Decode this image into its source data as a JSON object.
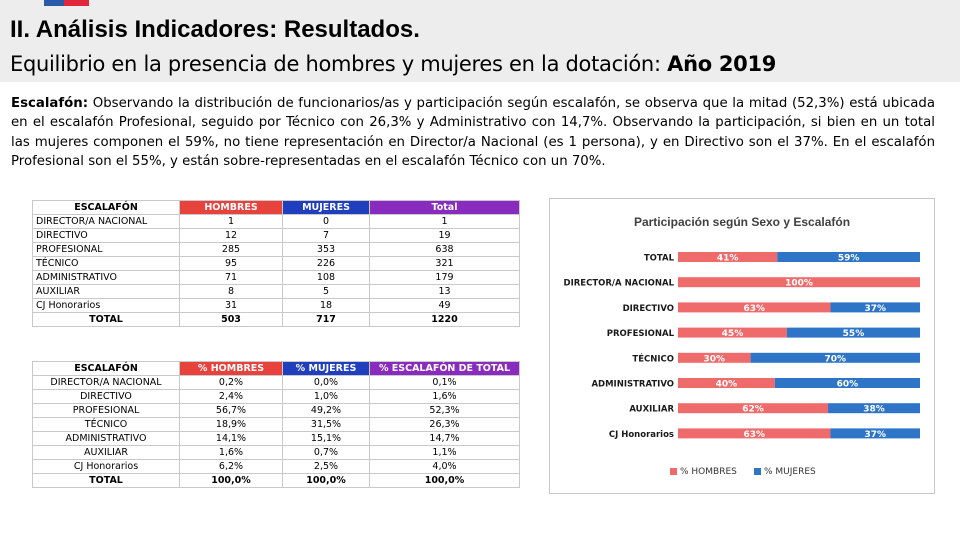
{
  "header": {
    "title": "II. Análisis Indicadores: Resultados.",
    "subtitle": "Equilibrio en la presencia de hombres y mujeres en la dotación:",
    "subtitle_year": "Año 2019"
  },
  "paragraph": {
    "lead": "Escalafón:",
    "text": " Observando la distribución de funcionarios/as y participación según escalafón, se observa que la mitad (52,3%) está ubicada en el escalafón Profesional, seguido por Técnico con 26,3% y Administrativo con 14,7%. Observando la participación, si bien en un total las mujeres componen el 59%, no tiene representación en Director/a Nacional (es 1 persona), y en Directivo son el 37%. En el escalafón Profesional son el 55%, y están sobre-representadas en el escalafón Técnico con un 70%."
  },
  "table_counts": {
    "headers": [
      "ESCALAFÓN",
      "HOMBRES",
      "MUJERES",
      "Total"
    ],
    "rows": [
      [
        "DIRECTOR/A NACIONAL",
        "1",
        "0",
        "1"
      ],
      [
        "DIRECTIVO",
        "12",
        "7",
        "19"
      ],
      [
        "PROFESIONAL",
        "285",
        "353",
        "638"
      ],
      [
        "TÉCNICO",
        "95",
        "226",
        "321"
      ],
      [
        "ADMINISTRATIVO",
        "71",
        "108",
        "179"
      ],
      [
        "AUXILIAR",
        "8",
        "5",
        "13"
      ],
      [
        "CJ Honorarios",
        "31",
        "18",
        "49"
      ]
    ],
    "total": [
      "TOTAL",
      "503",
      "717",
      "1220"
    ]
  },
  "table_pct": {
    "headers": [
      "ESCALAFÓN",
      "%  HOMBRES",
      "%  MUJERES",
      "% ESCALAFÓN DE TOTAL"
    ],
    "rows": [
      [
        "DIRECTOR/A NACIONAL",
        "0,2%",
        "0,0%",
        "0,1%"
      ],
      [
        "DIRECTIVO",
        "2,4%",
        "1,0%",
        "1,6%"
      ],
      [
        "PROFESIONAL",
        "56,7%",
        "49,2%",
        "52,3%"
      ],
      [
        "TÉCNICO",
        "18,9%",
        "31,5%",
        "26,3%"
      ],
      [
        "ADMINISTRATIVO",
        "14,1%",
        "15,1%",
        "14,7%"
      ],
      [
        "AUXILIAR",
        "1,6%",
        "0,7%",
        "1,1%"
      ],
      [
        "CJ Honorarios",
        "6,2%",
        "2,5%",
        "4,0%"
      ]
    ],
    "total": [
      "TOTAL",
      "100,0%",
      "100,0%",
      "100,0%"
    ]
  },
  "colors": {
    "hombres": "#ef6b6b",
    "mujeres": "#2e75c8",
    "header_red": "#e8423d",
    "header_blue": "#1f3fbe",
    "header_purple": "#8a2bbf"
  },
  "chart_data": {
    "type": "bar",
    "orientation": "horizontal",
    "stacked": "100%",
    "title": "Participación según Sexo y Escalafón",
    "categories": [
      "TOTAL",
      "DIRECTOR/A NACIONAL",
      "DIRECTIVO",
      "PROFESIONAL",
      "TÉCNICO",
      "ADMINISTRATIVO",
      "AUXILIAR",
      "CJ Honorarios"
    ],
    "series": [
      {
        "name": "% HOMBRES",
        "values": [
          41,
          100,
          63,
          45,
          30,
          40,
          62,
          63
        ],
        "labels": [
          "41%",
          "100%",
          "63%",
          "45%",
          "30%",
          "40%",
          "62%",
          "63%"
        ]
      },
      {
        "name": "% MUJERES",
        "values": [
          59,
          0,
          37,
          55,
          70,
          60,
          38,
          37
        ],
        "labels": [
          "59%",
          "",
          "37%",
          "55%",
          "70%",
          "60%",
          "38%",
          "37%"
        ]
      }
    ],
    "xlim": [
      0,
      100
    ],
    "legend": "bottom"
  }
}
